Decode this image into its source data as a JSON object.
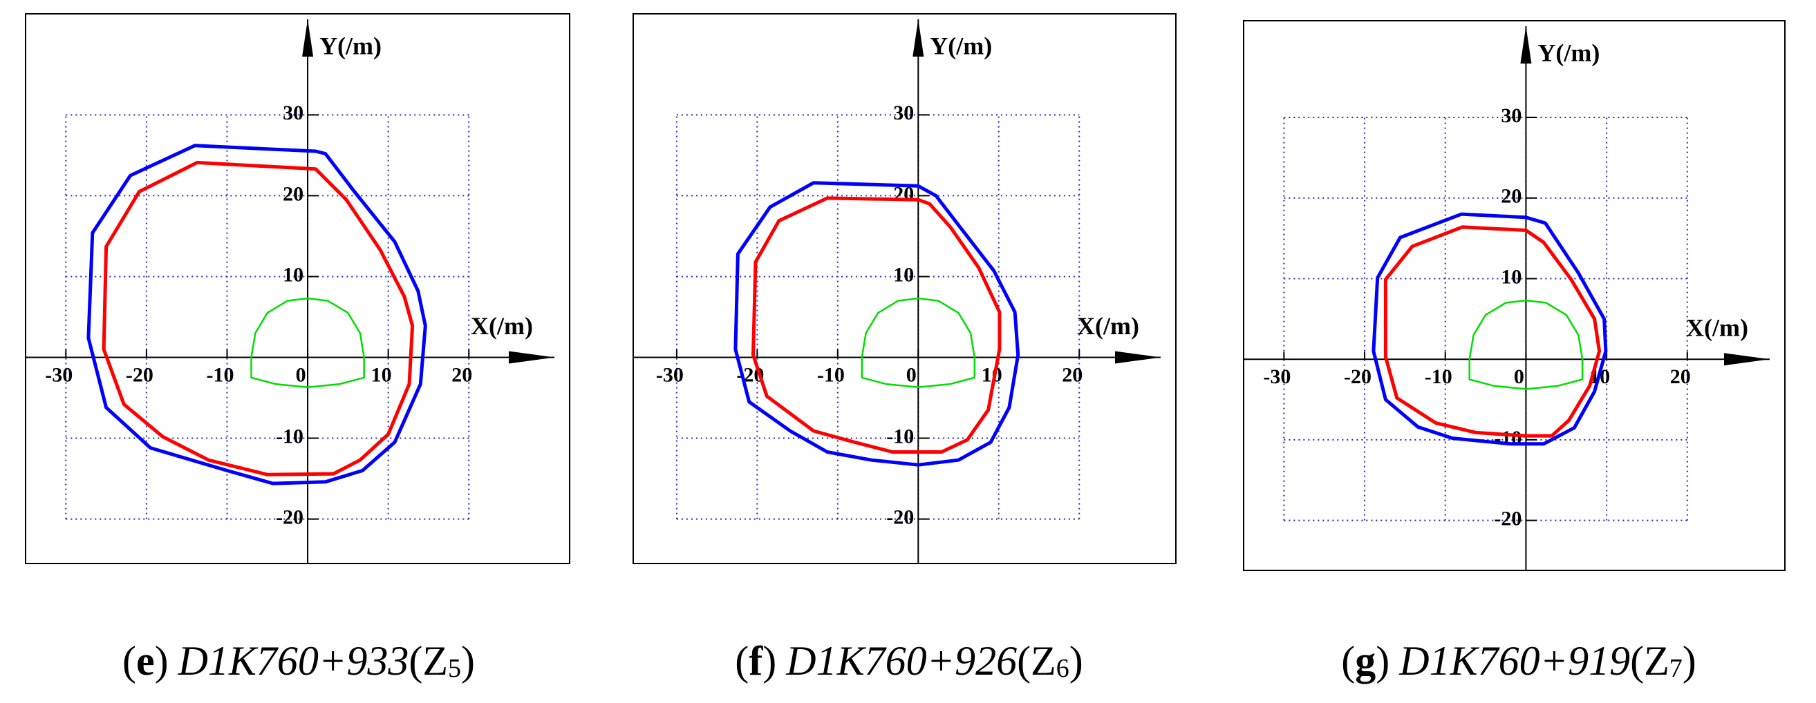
{
  "chart_data": [
    {
      "type": "line",
      "x_label": "X(/m)",
      "y_label": "Y(/m)",
      "caption": [
        "(",
        "e",
        ")",
        "D1K760+933",
        "(Z",
        "5",
        ")"
      ],
      "xlim": [
        -35,
        32.5
      ],
      "ylim": [
        -25.5,
        42.5
      ],
      "xticks": [
        -30,
        -20,
        -10,
        0,
        10,
        20
      ],
      "yticks": [
        -20,
        -10,
        10,
        20,
        30
      ],
      "grid": true,
      "series": [
        {
          "color": "#0000ff",
          "x": [
            1,
            -14,
            -22,
            -26.7,
            -27.2,
            -25,
            -19.5,
            -10,
            -4.3,
            2.2,
            6.8,
            10.8,
            14,
            14.6,
            13.7,
            10.8,
            5.8,
            2.2
          ],
          "values": [
            25.5,
            26.2,
            22.5,
            15.4,
            2.4,
            -6.2,
            -11.2,
            -14,
            -15.6,
            -15.4,
            -14,
            -10.5,
            -3.3,
            3.9,
            8.2,
            14.3,
            20.5,
            25.2
          ]
        },
        {
          "color": "#ff0000",
          "x": [
            1,
            -13.7,
            -20.9,
            -25,
            -25.3,
            -22.8,
            -18,
            -12.3,
            -5,
            3.2,
            6.5,
            10,
            12.6,
            13,
            12,
            9,
            4.8
          ],
          "values": [
            23.3,
            24.1,
            20.5,
            13.7,
            1,
            -5.8,
            -9.8,
            -12.7,
            -14.5,
            -14.4,
            -12.7,
            -9.5,
            -3.3,
            3.9,
            7.5,
            13.3,
            19.5
          ]
        },
        {
          "color": "#00dd00",
          "x": [
            -7,
            -6.5,
            -5,
            -2.5,
            0,
            2.5,
            5,
            6.5,
            7,
            7,
            4,
            0,
            -4,
            -7
          ],
          "values": [
            0,
            3,
            5.5,
            7,
            7.3,
            7,
            5.5,
            3,
            0,
            -2.5,
            -3.3,
            -3.7,
            -3.3,
            -2.5
          ]
        }
      ]
    },
    {
      "type": "line",
      "x_label": "X(/m)",
      "y_label": "Y(/m)",
      "caption": [
        "(",
        "f",
        ")",
        "D1K760+926",
        "(Z",
        "6",
        ")"
      ],
      "xlim": [
        -35.4,
        32
      ],
      "ylim": [
        -25.5,
        42.5
      ],
      "xticks": [
        -30,
        -20,
        -10,
        0,
        10,
        20
      ],
      "yticks": [
        -20,
        -10,
        10,
        20,
        30
      ],
      "grid": true,
      "series": [
        {
          "color": "#0000ff",
          "x": [
            0,
            -13,
            -18.4,
            -22.4,
            -22.7,
            -21,
            -15.9,
            -11.3,
            -5.8,
            0,
            5,
            9,
            11.3,
            12.4,
            12,
            9.4,
            5.2,
            2.2
          ],
          "values": [
            21.2,
            21.6,
            18.6,
            12.8,
            1,
            -5.5,
            -9.1,
            -11.7,
            -12.7,
            -13.3,
            -12.7,
            -10.5,
            -6.2,
            0.3,
            5.6,
            10.7,
            16.1,
            20
          ]
        },
        {
          "color": "#ff0000",
          "x": [
            0,
            -11.3,
            -17.3,
            -20.2,
            -20.5,
            -18.8,
            -13,
            -7.9,
            -3.2,
            2.9,
            6.1,
            8.7,
            10.1,
            10.1,
            7.5,
            4,
            1.4
          ],
          "values": [
            19.5,
            19.7,
            16.9,
            11.8,
            0.3,
            -4.8,
            -9.1,
            -10.5,
            -11.7,
            -11.7,
            -10.2,
            -6.5,
            1,
            5.6,
            11.1,
            16.1,
            19
          ]
        },
        {
          "color": "#00dd00",
          "x": [
            -7,
            -6.5,
            -5,
            -2.5,
            0,
            2.5,
            5,
            6.5,
            7,
            7,
            4,
            0,
            -4,
            -7
          ],
          "values": [
            0,
            3,
            5.5,
            7,
            7.3,
            7,
            5.5,
            3,
            0,
            -2.5,
            -3.3,
            -3.7,
            -3.3,
            -2.5
          ]
        }
      ]
    },
    {
      "type": "line",
      "x_label": "X(/m)",
      "y_label": "Y(/m)",
      "caption": [
        "(",
        "g",
        ")",
        "D1K760+919",
        "(Z",
        "7",
        ")"
      ],
      "xlim": [
        -35,
        32.1
      ],
      "ylim": [
        -26.2,
        42
      ],
      "xticks": [
        -30,
        -20,
        -10,
        0,
        10,
        20
      ],
      "yticks": [
        -20,
        -10,
        10,
        20,
        30
      ],
      "grid": true,
      "series": [
        {
          "color": "#0000ff",
          "x": [
            0,
            -8,
            -15.6,
            -18.4,
            -18.9,
            -17.4,
            -13.4,
            -9.1,
            -1.9,
            2.2,
            6,
            8.5,
            9.9,
            9.7,
            6.5,
            2.4
          ],
          "values": [
            17.6,
            18,
            15.1,
            10.1,
            1,
            -5,
            -8.4,
            -9.8,
            -10.5,
            -10.5,
            -8.5,
            -4,
            1,
            5,
            10.7,
            16.9
          ]
        },
        {
          "color": "#ff0000",
          "x": [
            0,
            -7.9,
            -14.1,
            -17.4,
            -17.4,
            -16,
            -11.2,
            -6.2,
            0,
            3.2,
            5.3,
            7.9,
            9.1,
            8.5,
            5.6,
            2.2
          ],
          "values": [
            16,
            16.4,
            14,
            9.9,
            0.3,
            -4.8,
            -7.9,
            -9.1,
            -9.5,
            -9.5,
            -7.6,
            -3.3,
            1,
            5,
            9.9,
            14.5
          ]
        },
        {
          "color": "#00dd00",
          "x": [
            -7,
            -6.5,
            -5,
            -2.5,
            0,
            2.5,
            5,
            6.5,
            7,
            7,
            4,
            0,
            -4,
            -7
          ],
          "values": [
            0,
            3,
            5.5,
            7,
            7.3,
            7,
            5.5,
            3,
            0,
            -2.5,
            -3.3,
            -3.7,
            -3.3,
            -2.5
          ]
        }
      ]
    }
  ]
}
